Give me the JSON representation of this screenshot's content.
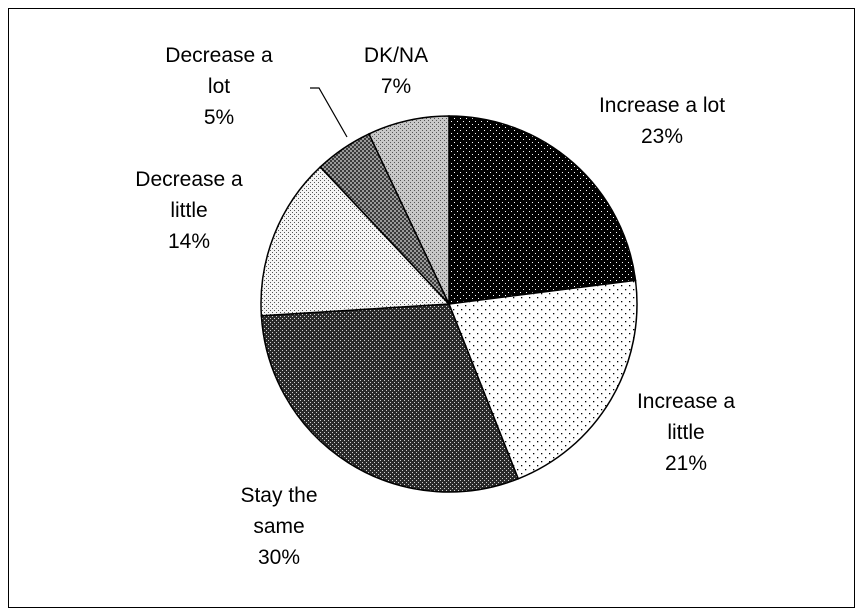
{
  "chart_data": {
    "type": "pie",
    "title": "",
    "start_angle_deg": 0,
    "direction": "clockwise",
    "slices": [
      {
        "label_lines": [
          "Increase a lot",
          "23%"
        ],
        "value": 23,
        "pattern": "pat-dark-dots"
      },
      {
        "label_lines": [
          "Increase a",
          "little",
          "21%"
        ],
        "value": 21,
        "pattern": "pat-light-dots"
      },
      {
        "label_lines": [
          "Stay the",
          "same",
          "30%"
        ],
        "value": 30,
        "pattern": "pat-dark-check"
      },
      {
        "label_lines": [
          "Decrease a",
          "little",
          "14%"
        ],
        "value": 14,
        "pattern": "pat-fine-grey"
      },
      {
        "label_lines": [
          "Decrease a",
          "lot",
          "5%"
        ],
        "value": 5,
        "pattern": "pat-darker-check"
      },
      {
        "label_lines": [
          "DK/NA",
          "7%"
        ],
        "value": 7,
        "pattern": "pat-mid-check"
      }
    ],
    "legend": "none",
    "colors": {
      "outline": "#000000",
      "background": "#ffffff"
    }
  }
}
